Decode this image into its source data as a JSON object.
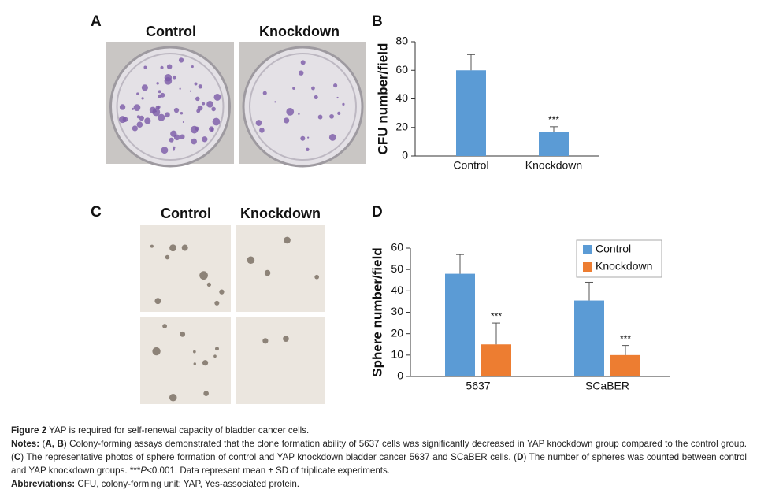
{
  "panels": {
    "a": "A",
    "b": "B",
    "c": "C",
    "d": "D"
  },
  "photo_headers": {
    "a_control": "Control",
    "a_knockdown": "Knockdown",
    "c_control": "Control",
    "c_knockdown": "Knockdown"
  },
  "chart_data": [
    {
      "type": "bar",
      "ylabel": "CFU number/field",
      "categories": [
        "Control",
        "Knockdown"
      ],
      "values": [
        60,
        17
      ],
      "errors": [
        11,
        3.5
      ],
      "labels": [
        null,
        "***"
      ],
      "color": "#5b9bd5",
      "ylim": [
        0,
        80
      ],
      "yticks": [
        0,
        20,
        40,
        60,
        80
      ]
    },
    {
      "type": "bar",
      "ylabel": "Sphere number/field",
      "categories": [
        "5637",
        "SCaBER"
      ],
      "series": [
        {
          "name": "Control",
          "color": "#5b9bd5",
          "values": [
            48,
            35.5
          ],
          "errors": [
            9,
            8.5
          ],
          "labels": [
            null,
            null
          ]
        },
        {
          "name": "Knockdown",
          "color": "#ed7d31",
          "values": [
            15,
            10
          ],
          "errors": [
            10,
            4.5
          ],
          "labels": [
            "***",
            "***"
          ]
        }
      ],
      "ylim": [
        0,
        60
      ],
      "yticks": [
        0,
        10,
        20,
        30,
        40,
        50,
        60
      ],
      "legend": "top-right"
    }
  ],
  "caption": [
    [
      {
        "text": "Figure 2",
        "bold": true
      },
      {
        "text": " YAP is required for self-renewal capacity of bladder cancer cells."
      }
    ],
    [
      {
        "text": "Notes:",
        "bold": true
      },
      {
        "text": " ("
      },
      {
        "text": "A, B",
        "bold": true
      },
      {
        "text": ") Colony-forming assays demonstrated that the clone formation ability of 5637 cells was significantly decreased in YAP knockdown group compared to the control group. ("
      },
      {
        "text": "C",
        "bold": true
      },
      {
        "text": ") The representative photos of sphere formation of control and YAP knockdown bladder cancer 5637 and SCaBER cells. ("
      },
      {
        "text": "D",
        "bold": true
      },
      {
        "text": ") The number of spheres was counted between control and YAP knockdown groups. ***"
      },
      {
        "text": "P",
        "italic": true
      },
      {
        "text": "<0.001. Data represent mean ± SD of triplicate experiments."
      }
    ],
    [
      {
        "text": "Abbreviations:",
        "bold": true
      },
      {
        "text": " CFU, colony-forming unit; YAP, Yes-associated protein."
      }
    ]
  ]
}
